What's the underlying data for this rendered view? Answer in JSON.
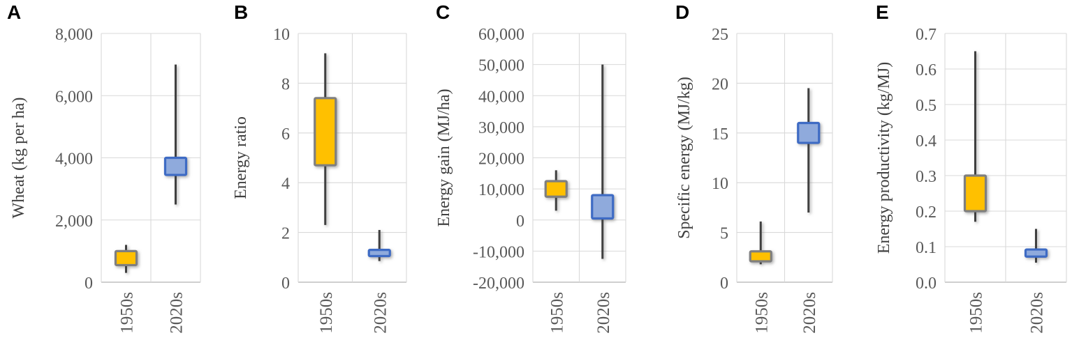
{
  "figure_title": "",
  "colors": {
    "gold_fill": "#FFC000",
    "gold_stroke": "#7F7F7F",
    "blue_fill": "#8FAADC",
    "blue_stroke": "#3E6BC4",
    "whisker": "#404040",
    "gridline": "#D9D9D9",
    "axis_line": "#BFBFBF",
    "tick_text": "#595959",
    "axis_title_text": "#404040",
    "category_text": "#595959",
    "panel_letter_text": "#000000",
    "background": "#FFFFFF"
  },
  "chart_data": [
    {
      "type": "box",
      "panel_label": "A",
      "ylabel": "Wheat (kg per ha)",
      "categories": [
        "1950s",
        "2020s"
      ],
      "ylim": [
        0,
        8000
      ],
      "grid": true,
      "ytick_values": [
        0,
        2000,
        4000,
        6000,
        8000
      ],
      "ytick_labels": [
        "0",
        "2,000",
        "4,000",
        "6,000",
        "8,000"
      ],
      "series": [
        {
          "name": "1950s",
          "style": "gold",
          "whisker_low": 300,
          "box_low": 550,
          "box_high": 1000,
          "whisker_high": 1200
        },
        {
          "name": "2020s",
          "style": "blue",
          "whisker_low": 2500,
          "box_low": 3450,
          "box_high": 4000,
          "whisker_high": 7000
        }
      ]
    },
    {
      "type": "box",
      "panel_label": "B",
      "ylabel": "Energy ratio",
      "categories": [
        "1950s",
        "2020s"
      ],
      "ylim": [
        0,
        10
      ],
      "grid": true,
      "ytick_values": [
        0,
        2,
        4,
        6,
        8,
        10
      ],
      "ytick_labels": [
        "0",
        "2",
        "4",
        "6",
        "8",
        "10"
      ],
      "series": [
        {
          "name": "1950s",
          "style": "gold",
          "whisker_low": 2.3,
          "box_low": 4.7,
          "box_high": 7.4,
          "whisker_high": 9.2
        },
        {
          "name": "2020s",
          "style": "blue",
          "whisker_low": 0.85,
          "box_low": 1.05,
          "box_high": 1.3,
          "whisker_high": 2.1
        }
      ]
    },
    {
      "type": "box",
      "panel_label": "C",
      "ylabel": "Energy gain (MJ/ha)",
      "categories": [
        "1950s",
        "2020s"
      ],
      "ylim": [
        -20000,
        60000
      ],
      "grid": true,
      "ytick_values": [
        -20000,
        -10000,
        0,
        10000,
        20000,
        30000,
        40000,
        50000,
        60000
      ],
      "ytick_labels": [
        "-20,000",
        "-10,000",
        "0",
        "10,000",
        "20,000",
        "30,000",
        "40,000",
        "50,000",
        "60,000"
      ],
      "series": [
        {
          "name": "1950s",
          "style": "gold",
          "whisker_low": 3000,
          "box_low": 7500,
          "box_high": 12500,
          "whisker_high": 16000
        },
        {
          "name": "2020s",
          "style": "blue",
          "whisker_low": -12500,
          "box_low": 500,
          "box_high": 8000,
          "whisker_high": 50000
        }
      ]
    },
    {
      "type": "box",
      "panel_label": "D",
      "ylabel": "Specific energy (MJ/kg)",
      "categories": [
        "1950s",
        "2020s"
      ],
      "ylim": [
        0,
        25
      ],
      "grid": true,
      "ytick_values": [
        0,
        5,
        10,
        15,
        20,
        25
      ],
      "ytick_labels": [
        "0",
        "5",
        "10",
        "15",
        "20",
        "25"
      ],
      "series": [
        {
          "name": "1950s",
          "style": "gold",
          "whisker_low": 1.8,
          "box_low": 2.1,
          "box_high": 3.1,
          "whisker_high": 6.1
        },
        {
          "name": "2020s",
          "style": "blue",
          "whisker_low": 7,
          "box_low": 14,
          "box_high": 16,
          "whisker_high": 19.5
        }
      ]
    },
    {
      "type": "box",
      "panel_label": "E",
      "ylabel": "Energy productivity (kg/MJ)",
      "categories": [
        "1950s",
        "2020s"
      ],
      "ylim": [
        0,
        0.7
      ],
      "grid": true,
      "ytick_values": [
        0,
        0.1,
        0.2,
        0.3,
        0.4,
        0.5,
        0.6,
        0.7
      ],
      "ytick_labels": [
        "0.0",
        "0.1",
        "0.2",
        "0.3",
        "0.4",
        "0.5",
        "0.6",
        "0.7"
      ],
      "series": [
        {
          "name": "1950s",
          "style": "gold",
          "whisker_low": 0.17,
          "box_low": 0.2,
          "box_high": 0.3,
          "whisker_high": 0.65
        },
        {
          "name": "2020s",
          "style": "blue",
          "whisker_low": 0.055,
          "box_low": 0.072,
          "box_high": 0.092,
          "whisker_high": 0.15
        }
      ]
    }
  ]
}
